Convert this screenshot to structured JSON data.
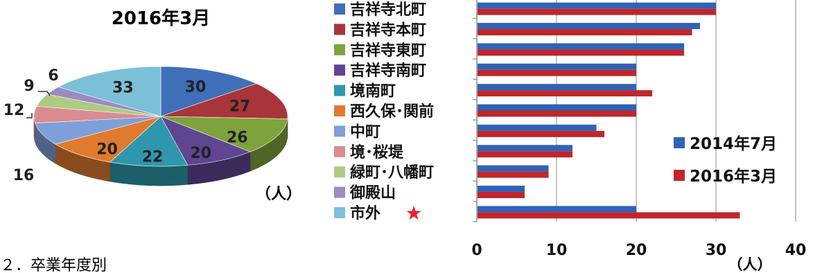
{
  "chart_data": [
    {
      "type": "pie",
      "title": "2016年3月",
      "unit_label": "（人）",
      "categories": [
        "吉祥寺北町",
        "吉祥寺本町",
        "吉祥寺東町",
        "吉祥寺南町",
        "境南町",
        "西久保･関前",
        "中町",
        "境･桜堤",
        "緑町･八幡町",
        "御殿山",
        "市外"
      ],
      "values": [
        30,
        27,
        26,
        20,
        22,
        20,
        16,
        12,
        9,
        6,
        33
      ],
      "colors": [
        "#3f6fb8",
        "#a8353a",
        "#7ea33d",
        "#5f4592",
        "#2f97ad",
        "#e07b2e",
        "#7f9fd8",
        "#d98c91",
        "#aecb82",
        "#9b8bc3",
        "#7cc0d8"
      ]
    },
    {
      "type": "bar",
      "orientation": "horizontal",
      "categories": [
        "吉祥寺北町",
        "吉祥寺本町",
        "吉祥寺東町",
        "吉祥寺南町",
        "境南町",
        "西久保･関前",
        "中町",
        "境･桜堤",
        "緑町･八幡町",
        "御殿山",
        "市外"
      ],
      "series": [
        {
          "name": "2014年7月",
          "color": "#2f63b7",
          "values": [
            30,
            28,
            26,
            20,
            20,
            20,
            15,
            12,
            9,
            6,
            20
          ]
        },
        {
          "name": "2016年3月",
          "color": "#c0262c",
          "values": [
            30,
            27,
            26,
            20,
            22,
            20,
            16,
            12,
            9,
            6,
            33
          ]
        }
      ],
      "xlim": [
        0,
        40
      ],
      "xticks": [
        "0",
        "10",
        "20",
        "30",
        "40"
      ],
      "xlabel": "（人）",
      "grid": true,
      "legend_position": "right"
    }
  ],
  "legend": {
    "items": [
      "吉祥寺北町",
      "吉祥寺本町",
      "吉祥寺東町",
      "吉祥寺南町",
      "境南町",
      "西久保･関前",
      "中町",
      "境･桜堤",
      "緑町･八幡町",
      "御殿山",
      "市外"
    ],
    "star_marker": "★",
    "star_color": "#e8242a"
  },
  "footer": {
    "caption": "２．卒業年度別"
  }
}
